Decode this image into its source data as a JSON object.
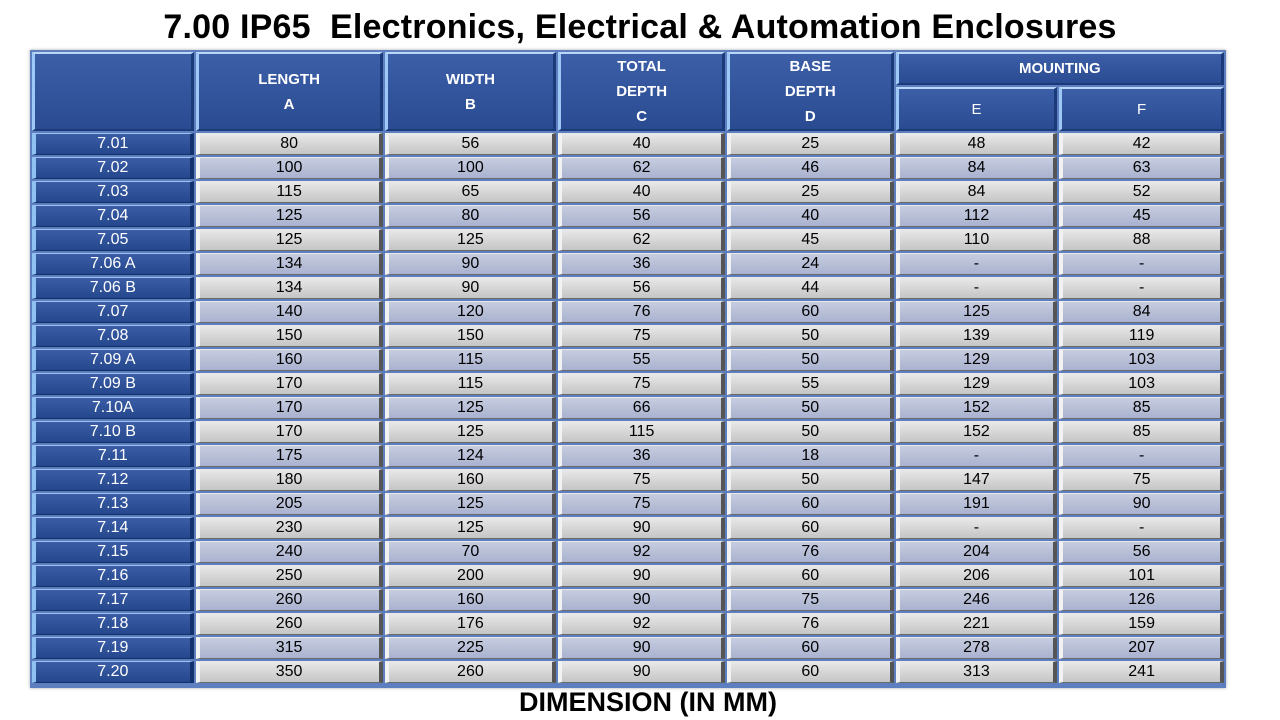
{
  "title": "7.00 IP65  Electronics, Electrical & Automation Enclosures",
  "footer": "DIMENSION (IN MM)",
  "headers": {
    "model": "",
    "length": [
      "LENGTH",
      "A"
    ],
    "width": [
      "WIDTH",
      "B"
    ],
    "total_depth": [
      "TOTAL",
      "DEPTH",
      "C"
    ],
    "base_depth": [
      "BASE",
      "DEPTH",
      "D"
    ],
    "mounting": "MOUNTING",
    "mounting_e": "E",
    "mounting_f": "F"
  },
  "rows": [
    [
      "7.01",
      "80",
      "56",
      "40",
      "25",
      "48",
      "42"
    ],
    [
      "7.02",
      "100",
      "100",
      "62",
      "46",
      "84",
      "63"
    ],
    [
      "7.03",
      "115",
      "65",
      "40",
      "25",
      "84",
      "52"
    ],
    [
      "7.04",
      "125",
      "80",
      "56",
      "40",
      "112",
      "45"
    ],
    [
      "7.05",
      "125",
      "125",
      "62",
      "45",
      "110",
      "88"
    ],
    [
      "7.06 A",
      "134",
      "90",
      "36",
      "24",
      "-",
      "-"
    ],
    [
      "7.06 B",
      "134",
      "90",
      "56",
      "44",
      "-",
      "-"
    ],
    [
      "7.07",
      "140",
      "120",
      "76",
      "60",
      "125",
      "84"
    ],
    [
      "7.08",
      "150",
      "150",
      "75",
      "50",
      "139",
      "119"
    ],
    [
      "7.09 A",
      "160",
      "115",
      "55",
      "50",
      "129",
      "103"
    ],
    [
      "7.09 B",
      "170",
      "115",
      "75",
      "55",
      "129",
      "103"
    ],
    [
      "7.10A",
      "170",
      "125",
      "66",
      "50",
      "152",
      "85"
    ],
    [
      "7.10 B",
      "170",
      "125",
      "115",
      "50",
      "152",
      "85"
    ],
    [
      "7.11",
      "175",
      "124",
      "36",
      "18",
      "-",
      "-"
    ],
    [
      "7.12",
      "180",
      "160",
      "75",
      "50",
      "147",
      "75"
    ],
    [
      "7.13",
      "205",
      "125",
      "75",
      "60",
      "191",
      "90"
    ],
    [
      "7.14",
      "230",
      "125",
      "90",
      "60",
      "-",
      "-"
    ],
    [
      "7.15",
      "240",
      "70",
      "92",
      "76",
      "204",
      "56"
    ],
    [
      "7.16",
      "250",
      "200",
      "90",
      "60",
      "206",
      "101"
    ],
    [
      "7.17",
      "260",
      "160",
      "90",
      "75",
      "246",
      "126"
    ],
    [
      "7.18",
      "260",
      "176",
      "92",
      "76",
      "221",
      "159"
    ],
    [
      "7.19",
      "315",
      "225",
      "90",
      "60",
      "278",
      "207"
    ],
    [
      "7.20",
      "350",
      "260",
      "90",
      "60",
      "313",
      "241"
    ]
  ]
}
